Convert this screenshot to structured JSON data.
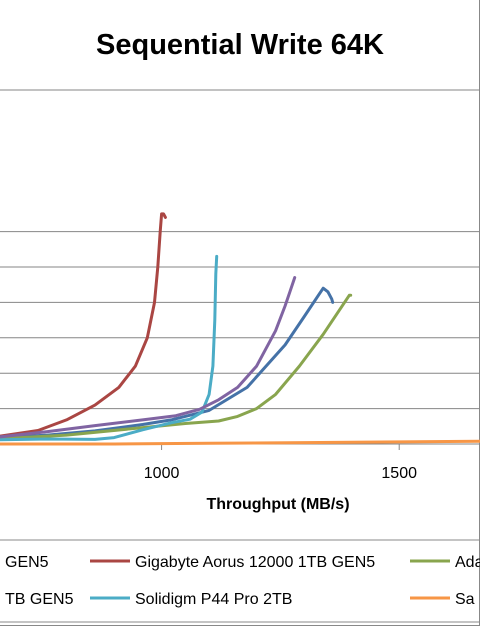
{
  "chart_data": {
    "type": "line",
    "title": "Sequential Write 64K",
    "xlabel": "Throughput  (MB/s)",
    "ylabel": "",
    "x_tick_labels": [
      "1000",
      "1500"
    ],
    "xlim": [
      660,
      1670
    ],
    "ylim": [
      0,
      1
    ],
    "gridlines": [
      0.1,
      0.2,
      0.3,
      0.4,
      0.5,
      0.6
    ],
    "grid": true,
    "legend_position": "bottom",
    "series": [
      {
        "name": "GEN5",
        "color": "#4572A7",
        "x": [
          660,
          760,
          860,
          960,
          1020,
          1100,
          1180,
          1260,
          1300,
          1330,
          1340,
          1350,
          1358,
          1360
        ],
        "y": [
          0.018,
          0.025,
          0.037,
          0.055,
          0.068,
          0.095,
          0.16,
          0.28,
          0.36,
          0.42,
          0.44,
          0.43,
          0.41,
          0.4
        ]
      },
      {
        "name": "Gigabyte Aorus 12000 1TB GEN5",
        "color": "#AA4643",
        "x": [
          660,
          740,
          800,
          860,
          910,
          945,
          970,
          985,
          992,
          997,
          1000,
          1004,
          1008
        ],
        "y": [
          0.022,
          0.038,
          0.068,
          0.11,
          0.16,
          0.22,
          0.3,
          0.4,
          0.5,
          0.6,
          0.65,
          0.65,
          0.64
        ]
      },
      {
        "name": "Ada",
        "color": "#89A54E",
        "x": [
          660,
          800,
          950,
          1050,
          1120,
          1160,
          1200,
          1240,
          1290,
          1340,
          1380,
          1395,
          1398
        ],
        "y": [
          0.015,
          0.025,
          0.045,
          0.058,
          0.065,
          0.078,
          0.1,
          0.14,
          0.22,
          0.31,
          0.39,
          0.42,
          0.42
        ]
      },
      {
        "name": "Solidigm P44 Pro 2TB",
        "color": "#4BACC6",
        "x": [
          660,
          760,
          860,
          900,
          960,
          1020,
          1060,
          1085,
          1100,
          1108,
          1112,
          1114,
          1116
        ],
        "y": [
          0.012,
          0.014,
          0.013,
          0.018,
          0.04,
          0.06,
          0.07,
          0.09,
          0.14,
          0.22,
          0.35,
          0.48,
          0.53
        ]
      },
      {
        "name": "GEN5",
        "color": "#8064A2",
        "x": [
          660,
          760,
          860,
          960,
          1030,
          1080,
          1120,
          1160,
          1200,
          1240,
          1260,
          1270,
          1280
        ],
        "y": [
          0.02,
          0.035,
          0.052,
          0.068,
          0.08,
          0.098,
          0.125,
          0.16,
          0.22,
          0.32,
          0.39,
          0.43,
          0.47
        ]
      },
      {
        "name": "Sa",
        "color": "#F79646",
        "x": [
          660,
          900,
          1100,
          1300,
          1500,
          1670
        ],
        "y": [
          0.0,
          0.0,
          0.002,
          0.004,
          0.006,
          0.008
        ]
      }
    ],
    "legend_rows": [
      [
        {
          "label": "GEN5",
          "color": "#4572A7"
        },
        {
          "label": "Gigabyte Aorus 12000 1TB GEN5",
          "color": "#AA4643"
        },
        {
          "label": "Ada",
          "color": "#89A54E"
        }
      ],
      [
        {
          "label": "TB GEN5",
          "color": "#8064A2"
        },
        {
          "label": "Solidigm P44 Pro 2TB",
          "color": "#4BACC6"
        },
        {
          "label": "Sa",
          "color": "#F79646"
        }
      ]
    ]
  }
}
